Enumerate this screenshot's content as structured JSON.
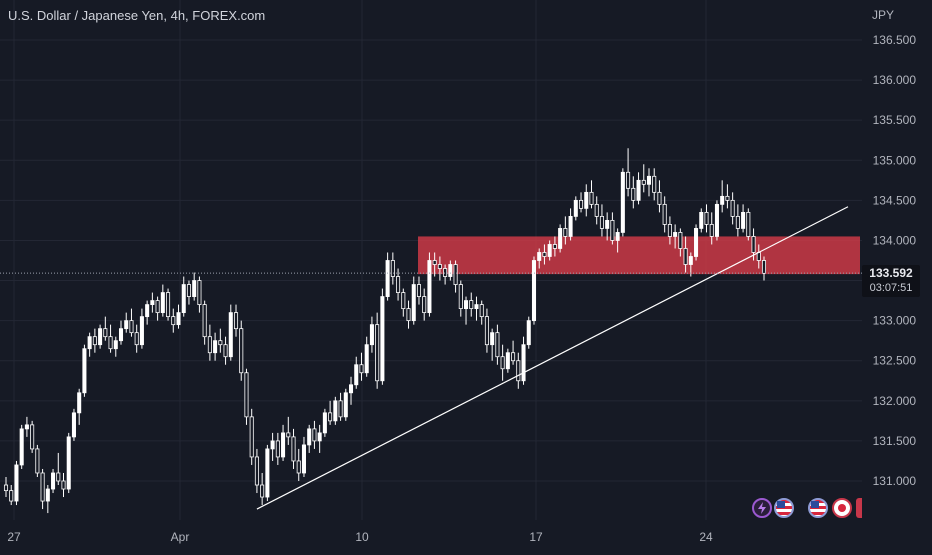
{
  "header": {
    "title": "U.S. Dollar / Japanese Yen, 4h, FOREX.com",
    "currency": "JPY"
  },
  "price_tag": {
    "price": "133.592",
    "countdown": "03:07:51"
  },
  "indicator_icons": [
    "lightning-icon",
    "us-flag-icon",
    "us-flag-icon",
    "japan-flag-icon"
  ],
  "colors": {
    "background": "#161a25",
    "candle": "#ffffff",
    "zone": "#d23a48",
    "trendline": "#ffffff",
    "grid": "#232734"
  },
  "chart_data": {
    "type": "candlestick",
    "title": "U.S. Dollar / Japanese Yen, 4h, FOREX.com",
    "symbol": "USD/JPY",
    "timeframe": "4h",
    "x_ticks": [
      "27",
      "Apr",
      "10",
      "17",
      "24"
    ],
    "y_ticks": [
      "136.500",
      "136.000",
      "135.500",
      "135.000",
      "134.500",
      "134.000",
      "133.500",
      "133.000",
      "132.500",
      "132.000",
      "131.500",
      "131.000"
    ],
    "ylim": [
      130.55,
      136.85
    ],
    "last_price": 133.592,
    "grid": true,
    "annotations": [
      {
        "kind": "zone",
        "y_from": 133.58,
        "y_to": 134.05,
        "color": "#d23a48"
      },
      {
        "kind": "trendline",
        "from": {
          "index": 48,
          "price": 130.65
        },
        "to": {
          "index": 158,
          "price": 134.42
        }
      }
    ],
    "series": [
      {
        "ohlc": [
          [
            130.95,
            131.05,
            130.8,
            130.88
          ],
          [
            130.88,
            130.95,
            130.7,
            130.75
          ],
          [
            130.75,
            131.25,
            130.7,
            131.2
          ],
          [
            131.2,
            131.7,
            131.15,
            131.65
          ],
          [
            131.65,
            131.8,
            131.55,
            131.7
          ],
          [
            131.7,
            131.75,
            131.35,
            131.4
          ],
          [
            131.4,
            131.45,
            131.05,
            131.1
          ],
          [
            131.1,
            131.15,
            130.65,
            130.75
          ],
          [
            130.75,
            130.95,
            130.6,
            130.9
          ],
          [
            130.9,
            131.15,
            130.85,
            131.1
          ],
          [
            131.1,
            131.35,
            130.95,
            131.0
          ],
          [
            131.0,
            131.1,
            130.8,
            130.9
          ],
          [
            130.9,
            131.6,
            130.85,
            131.55
          ],
          [
            131.55,
            131.9,
            131.5,
            131.85
          ],
          [
            131.85,
            132.15,
            131.7,
            132.1
          ],
          [
            132.1,
            132.7,
            132.05,
            132.65
          ],
          [
            132.65,
            132.85,
            132.55,
            132.8
          ],
          [
            132.8,
            132.9,
            132.6,
            132.7
          ],
          [
            132.7,
            132.95,
            132.65,
            132.9
          ],
          [
            132.9,
            133.05,
            132.75,
            132.8
          ],
          [
            132.8,
            132.95,
            132.6,
            132.65
          ],
          [
            132.65,
            132.8,
            132.55,
            132.75
          ],
          [
            132.75,
            133.0,
            132.7,
            132.9
          ],
          [
            132.9,
            133.1,
            132.85,
            133.0
          ],
          [
            133.0,
            133.15,
            132.8,
            132.85
          ],
          [
            132.85,
            132.95,
            132.6,
            132.7
          ],
          [
            132.7,
            133.15,
            132.65,
            133.05
          ],
          [
            133.05,
            133.25,
            132.95,
            133.2
          ],
          [
            133.2,
            133.35,
            133.1,
            133.25
          ],
          [
            133.25,
            133.3,
            133.0,
            133.1
          ],
          [
            133.1,
            133.45,
            133.05,
            133.35
          ],
          [
            133.35,
            133.4,
            133.0,
            133.05
          ],
          [
            133.05,
            133.15,
            132.85,
            132.95
          ],
          [
            132.95,
            133.2,
            132.9,
            133.1
          ],
          [
            133.1,
            133.55,
            133.05,
            133.45
          ],
          [
            133.45,
            133.5,
            133.2,
            133.3
          ],
          [
            133.3,
            133.6,
            133.25,
            133.5
          ],
          [
            133.5,
            133.55,
            133.1,
            133.2
          ],
          [
            133.2,
            133.25,
            132.7,
            132.8
          ],
          [
            132.8,
            132.95,
            132.5,
            132.6
          ],
          [
            132.6,
            132.85,
            132.5,
            132.75
          ],
          [
            132.75,
            132.9,
            132.6,
            132.7
          ],
          [
            132.7,
            132.8,
            132.45,
            132.55
          ],
          [
            132.55,
            133.2,
            132.5,
            133.1
          ],
          [
            133.1,
            133.2,
            132.8,
            132.9
          ],
          [
            132.9,
            133.0,
            132.25,
            132.35
          ],
          [
            132.35,
            132.4,
            131.7,
            131.8
          ],
          [
            131.8,
            131.9,
            131.2,
            131.3
          ],
          [
            131.3,
            131.4,
            130.85,
            130.95
          ],
          [
            130.95,
            131.1,
            130.7,
            130.8
          ],
          [
            130.8,
            131.45,
            130.75,
            131.4
          ],
          [
            131.4,
            131.6,
            131.25,
            131.5
          ],
          [
            131.5,
            131.6,
            131.2,
            131.3
          ],
          [
            131.3,
            131.7,
            131.25,
            131.6
          ],
          [
            131.6,
            131.8,
            131.45,
            131.55
          ],
          [
            131.55,
            131.65,
            131.15,
            131.25
          ],
          [
            131.25,
            131.4,
            131.0,
            131.1
          ],
          [
            131.1,
            131.55,
            131.05,
            131.45
          ],
          [
            131.45,
            131.7,
            131.35,
            131.65
          ],
          [
            131.65,
            131.75,
            131.4,
            131.5
          ],
          [
            131.5,
            131.7,
            131.35,
            131.6
          ],
          [
            131.6,
            131.9,
            131.55,
            131.85
          ],
          [
            131.85,
            132.0,
            131.7,
            131.75
          ],
          [
            131.75,
            132.05,
            131.7,
            132.0
          ],
          [
            132.0,
            132.1,
            131.75,
            131.8
          ],
          [
            131.8,
            132.15,
            131.75,
            132.1
          ],
          [
            132.1,
            132.3,
            131.95,
            132.2
          ],
          [
            132.2,
            132.55,
            132.15,
            132.45
          ],
          [
            132.45,
            132.6,
            132.25,
            132.35
          ],
          [
            132.35,
            132.8,
            132.3,
            132.7
          ],
          [
            132.7,
            133.05,
            132.6,
            132.95
          ],
          [
            132.95,
            133.1,
            132.15,
            132.25
          ],
          [
            132.25,
            133.4,
            132.2,
            133.3
          ],
          [
            133.3,
            133.85,
            133.25,
            133.75
          ],
          [
            133.75,
            133.85,
            133.45,
            133.55
          ],
          [
            133.55,
            133.65,
            133.25,
            133.35
          ],
          [
            133.35,
            133.4,
            133.05,
            133.15
          ],
          [
            133.15,
            133.25,
            132.9,
            133.0
          ],
          [
            133.0,
            133.55,
            132.95,
            133.45
          ],
          [
            133.45,
            133.55,
            133.2,
            133.3
          ],
          [
            133.3,
            133.4,
            133.0,
            133.1
          ],
          [
            133.1,
            133.85,
            133.05,
            133.75
          ],
          [
            133.75,
            133.85,
            133.55,
            133.7
          ],
          [
            133.7,
            133.8,
            133.5,
            133.65
          ],
          [
            133.65,
            133.7,
            133.45,
            133.55
          ],
          [
            133.55,
            133.75,
            133.5,
            133.7
          ],
          [
            133.7,
            133.75,
            133.35,
            133.45
          ],
          [
            133.45,
            133.5,
            133.05,
            133.15
          ],
          [
            133.15,
            133.3,
            132.95,
            133.25
          ],
          [
            133.25,
            133.35,
            133.05,
            133.15
          ],
          [
            133.15,
            133.3,
            133.0,
            133.2
          ],
          [
            133.2,
            133.25,
            132.95,
            133.05
          ],
          [
            133.05,
            133.15,
            132.6,
            132.7
          ],
          [
            132.7,
            132.9,
            132.5,
            132.85
          ],
          [
            132.85,
            132.95,
            132.45,
            132.55
          ],
          [
            132.55,
            132.7,
            132.25,
            132.4
          ],
          [
            132.4,
            132.65,
            132.35,
            132.6
          ],
          [
            132.6,
            132.75,
            132.45,
            132.5
          ],
          [
            132.5,
            132.6,
            132.15,
            132.25
          ],
          [
            132.25,
            132.8,
            132.2,
            132.7
          ],
          [
            132.7,
            133.05,
            132.65,
            133.0
          ],
          [
            133.0,
            133.8,
            132.95,
            133.75
          ],
          [
            133.75,
            133.9,
            133.65,
            133.85
          ],
          [
            133.85,
            133.95,
            133.7,
            133.8
          ],
          [
            133.8,
            134.0,
            133.75,
            133.95
          ],
          [
            133.95,
            134.05,
            133.8,
            133.9
          ],
          [
            133.9,
            134.2,
            133.85,
            134.15
          ],
          [
            134.15,
            134.3,
            133.95,
            134.05
          ],
          [
            134.05,
            134.4,
            134.0,
            134.3
          ],
          [
            134.3,
            134.55,
            134.25,
            134.5
          ],
          [
            134.5,
            134.6,
            134.35,
            134.4
          ],
          [
            134.4,
            134.7,
            134.3,
            134.6
          ],
          [
            134.6,
            134.75,
            134.4,
            134.45
          ],
          [
            134.45,
            134.55,
            134.2,
            134.3
          ],
          [
            134.3,
            134.45,
            134.05,
            134.15
          ],
          [
            134.15,
            134.35,
            134.0,
            134.25
          ],
          [
            134.25,
            134.35,
            133.95,
            134.0
          ],
          [
            134.0,
            134.15,
            133.85,
            134.1
          ],
          [
            134.1,
            134.9,
            134.05,
            134.85
          ],
          [
            134.85,
            135.15,
            134.55,
            134.65
          ],
          [
            134.65,
            134.8,
            134.4,
            134.5
          ],
          [
            134.5,
            134.85,
            134.45,
            134.75
          ],
          [
            134.75,
            134.95,
            134.6,
            134.7
          ],
          [
            134.7,
            134.9,
            134.55,
            134.8
          ],
          [
            134.8,
            134.9,
            134.5,
            134.6
          ],
          [
            134.6,
            134.75,
            134.35,
            134.45
          ],
          [
            134.45,
            134.55,
            134.1,
            134.2
          ],
          [
            134.2,
            134.3,
            133.95,
            134.05
          ],
          [
            134.05,
            134.2,
            133.9,
            134.1
          ],
          [
            134.1,
            134.15,
            133.8,
            133.9
          ],
          [
            133.9,
            134.05,
            133.6,
            133.7
          ],
          [
            133.7,
            133.85,
            133.55,
            133.8
          ],
          [
            133.8,
            134.2,
            133.75,
            134.15
          ],
          [
            134.15,
            134.4,
            134.1,
            134.35
          ],
          [
            134.35,
            134.45,
            134.1,
            134.2
          ],
          [
            134.2,
            134.35,
            133.95,
            134.05
          ],
          [
            134.05,
            134.5,
            134.0,
            134.45
          ],
          [
            134.45,
            134.75,
            134.35,
            134.55
          ],
          [
            134.55,
            134.7,
            134.4,
            134.5
          ],
          [
            134.5,
            134.6,
            134.2,
            134.3
          ],
          [
            134.3,
            134.45,
            134.05,
            134.15
          ],
          [
            134.15,
            134.45,
            134.1,
            134.35
          ],
          [
            134.35,
            134.4,
            134.0,
            134.05
          ],
          [
            134.05,
            134.15,
            133.75,
            133.85
          ],
          [
            133.85,
            133.95,
            133.65,
            133.75
          ],
          [
            133.75,
            133.8,
            133.5,
            133.59
          ]
        ]
      }
    ]
  }
}
